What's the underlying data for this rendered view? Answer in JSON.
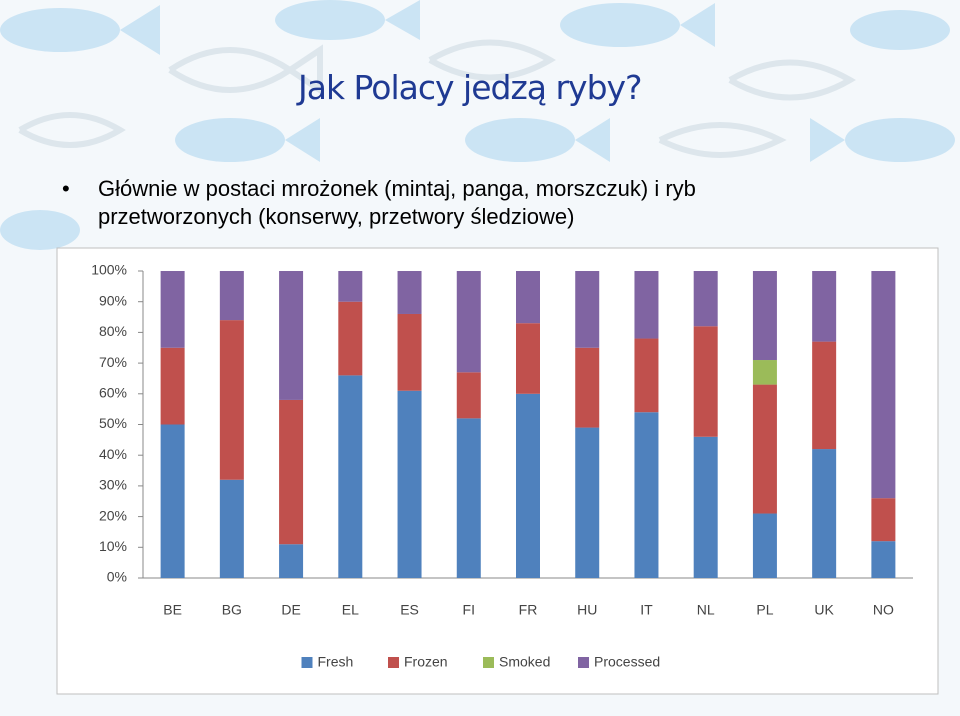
{
  "title": "Jak Polacy jedzą ryby?",
  "bullets": [
    "Głównie w postaci mrożonek (mintaj, panga, morszczuk) i ryb przetworzonych (konserwy, przetwory śledziowe)"
  ],
  "chart_data": {
    "type": "stacked_bar",
    "categories": [
      "BE",
      "BG",
      "DE",
      "EL",
      "ES",
      "FI",
      "FR",
      "HU",
      "IT",
      "NL",
      "PL",
      "UK",
      "NO"
    ],
    "series": [
      {
        "name": "Fresh",
        "color": "#4f81bd",
        "values": [
          50,
          32,
          11,
          66,
          61,
          52,
          60,
          49,
          54,
          46,
          21,
          42,
          12
        ]
      },
      {
        "name": "Frozen",
        "color": "#c0504d",
        "values": [
          25,
          52,
          47,
          24,
          25,
          15,
          23,
          26,
          24,
          36,
          42,
          35,
          14
        ]
      },
      {
        "name": "Smoked",
        "color": "#9bbb59",
        "values": [
          0,
          0,
          0,
          0,
          0,
          0,
          0,
          0,
          0,
          0,
          8,
          0,
          0
        ]
      },
      {
        "name": "Processed",
        "color": "#8064a2",
        "values": [
          25,
          16,
          42,
          10,
          14,
          33,
          17,
          25,
          22,
          18,
          29,
          23,
          74
        ]
      }
    ],
    "ylim": [
      0,
      100
    ],
    "yticks": [
      {
        "value": 0,
        "label": "0%"
      },
      {
        "value": 10,
        "label": "10%"
      },
      {
        "value": 20,
        "label": "20%"
      },
      {
        "value": 30,
        "label": "30%"
      },
      {
        "value": 40,
        "label": "40%"
      },
      {
        "value": 50,
        "label": "50%"
      },
      {
        "value": 60,
        "label": "60%"
      },
      {
        "value": 70,
        "label": "70%"
      },
      {
        "value": 80,
        "label": "80%"
      },
      {
        "value": 90,
        "label": "90%"
      },
      {
        "value": 100,
        "label": "100%"
      }
    ],
    "grid": false,
    "legend": "bottom"
  }
}
